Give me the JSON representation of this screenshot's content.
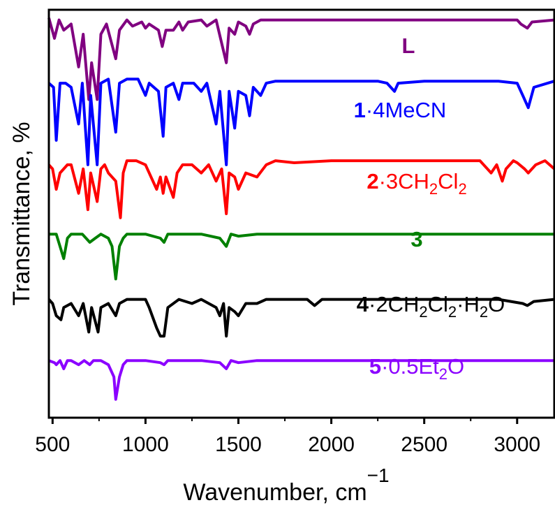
{
  "chart_data": {
    "type": "line",
    "xlabel": "Wavenumber, cm",
    "xlabel_superscript": "−1",
    "ylabel": "Transmittance, %",
    "xlim": [
      480,
      3200
    ],
    "xticks": [
      500,
      1000,
      1500,
      2000,
      2500,
      3000
    ],
    "yticks_shown": false,
    "grid": false,
    "legend": "inline labels beside each trace",
    "series": [
      {
        "name": "L",
        "color": "#800080",
        "label_parts": [
          {
            "t": "L",
            "bold": true
          }
        ],
        "baseline": 0.97,
        "depth_scale": 1.0,
        "points": [
          [
            480,
            0.98
          ],
          [
            510,
            0.93
          ],
          [
            535,
            0.975
          ],
          [
            560,
            0.95
          ],
          [
            600,
            0.965
          ],
          [
            640,
            0.86
          ],
          [
            665,
            0.94
          ],
          [
            695,
            0.78
          ],
          [
            710,
            0.87
          ],
          [
            740,
            0.78
          ],
          [
            760,
            0.94
          ],
          [
            790,
            0.965
          ],
          [
            840,
            0.88
          ],
          [
            860,
            0.95
          ],
          [
            900,
            0.975
          ],
          [
            930,
            0.96
          ],
          [
            980,
            0.97
          ],
          [
            1000,
            0.955
          ],
          [
            1020,
            0.965
          ],
          [
            1070,
            0.95
          ],
          [
            1090,
            0.91
          ],
          [
            1110,
            0.95
          ],
          [
            1150,
            0.95
          ],
          [
            1180,
            0.97
          ],
          [
            1200,
            0.95
          ],
          [
            1230,
            0.97
          ],
          [
            1300,
            0.975
          ],
          [
            1330,
            0.96
          ],
          [
            1380,
            0.975
          ],
          [
            1435,
            0.87
          ],
          [
            1450,
            0.955
          ],
          [
            1480,
            0.94
          ],
          [
            1500,
            0.97
          ],
          [
            1540,
            0.96
          ],
          [
            1560,
            0.94
          ],
          [
            1580,
            0.965
          ],
          [
            1620,
            0.975
          ],
          [
            1700,
            0.975
          ],
          [
            2000,
            0.975
          ],
          [
            2500,
            0.975
          ],
          [
            2900,
            0.975
          ],
          [
            3000,
            0.975
          ],
          [
            3020,
            0.965
          ],
          [
            3055,
            0.955
          ],
          [
            3080,
            0.97
          ],
          [
            3200,
            0.975
          ]
        ]
      },
      {
        "name": "1·4MeCN",
        "color": "#0000ff",
        "label_parts": [
          {
            "t": "1",
            "bold": true
          },
          {
            "t": "·4MeCN"
          }
        ],
        "points": [
          [
            480,
            0.82
          ],
          [
            505,
            0.81
          ],
          [
            520,
            0.68
          ],
          [
            540,
            0.82
          ],
          [
            570,
            0.82
          ],
          [
            600,
            0.81
          ],
          [
            640,
            0.72
          ],
          [
            660,
            0.82
          ],
          [
            690,
            0.62
          ],
          [
            705,
            0.79
          ],
          [
            740,
            0.62
          ],
          [
            760,
            0.82
          ],
          [
            800,
            0.83
          ],
          [
            840,
            0.7
          ],
          [
            860,
            0.82
          ],
          [
            900,
            0.83
          ],
          [
            960,
            0.83
          ],
          [
            1000,
            0.79
          ],
          [
            1020,
            0.82
          ],
          [
            1070,
            0.8
          ],
          [
            1095,
            0.69
          ],
          [
            1110,
            0.81
          ],
          [
            1150,
            0.82
          ],
          [
            1180,
            0.78
          ],
          [
            1200,
            0.82
          ],
          [
            1260,
            0.82
          ],
          [
            1300,
            0.8
          ],
          [
            1330,
            0.82
          ],
          [
            1380,
            0.72
          ],
          [
            1400,
            0.8
          ],
          [
            1435,
            0.62
          ],
          [
            1450,
            0.8
          ],
          [
            1480,
            0.71
          ],
          [
            1500,
            0.8
          ],
          [
            1540,
            0.79
          ],
          [
            1560,
            0.74
          ],
          [
            1580,
            0.81
          ],
          [
            1620,
            0.79
          ],
          [
            1650,
            0.82
          ],
          [
            1700,
            0.825
          ],
          [
            2000,
            0.825
          ],
          [
            2250,
            0.825
          ],
          [
            2300,
            0.82
          ],
          [
            2340,
            0.8
          ],
          [
            2360,
            0.82
          ],
          [
            2500,
            0.825
          ],
          [
            2900,
            0.825
          ],
          [
            3000,
            0.82
          ],
          [
            3030,
            0.79
          ],
          [
            3060,
            0.76
          ],
          [
            3090,
            0.81
          ],
          [
            3200,
            0.825
          ]
        ]
      },
      {
        "name": "2·3CH₂Cl₂",
        "color": "#ff0000",
        "label_parts": [
          {
            "t": "2",
            "bold": true
          },
          {
            "t": "·3CH"
          },
          {
            "t": "2",
            "sub": true
          },
          {
            "t": "Cl"
          },
          {
            "t": "2",
            "sub": true
          }
        ],
        "points": [
          [
            480,
            0.62
          ],
          [
            500,
            0.61
          ],
          [
            520,
            0.56
          ],
          [
            540,
            0.6
          ],
          [
            580,
            0.62
          ],
          [
            600,
            0.62
          ],
          [
            640,
            0.55
          ],
          [
            665,
            0.61
          ],
          [
            690,
            0.51
          ],
          [
            705,
            0.6
          ],
          [
            740,
            0.53
          ],
          [
            760,
            0.61
          ],
          [
            780,
            0.62
          ],
          [
            800,
            0.6
          ],
          [
            840,
            0.58
          ],
          [
            865,
            0.49
          ],
          [
            880,
            0.6
          ],
          [
            900,
            0.63
          ],
          [
            950,
            0.63
          ],
          [
            1000,
            0.62
          ],
          [
            1020,
            0.6
          ],
          [
            1060,
            0.56
          ],
          [
            1080,
            0.59
          ],
          [
            1095,
            0.55
          ],
          [
            1110,
            0.59
          ],
          [
            1150,
            0.54
          ],
          [
            1170,
            0.6
          ],
          [
            1200,
            0.62
          ],
          [
            1250,
            0.62
          ],
          [
            1300,
            0.6
          ],
          [
            1340,
            0.62
          ],
          [
            1380,
            0.58
          ],
          [
            1410,
            0.61
          ],
          [
            1435,
            0.5
          ],
          [
            1450,
            0.6
          ],
          [
            1480,
            0.59
          ],
          [
            1500,
            0.56
          ],
          [
            1540,
            0.6
          ],
          [
            1600,
            0.59
          ],
          [
            1650,
            0.62
          ],
          [
            1700,
            0.63
          ],
          [
            1800,
            0.625
          ],
          [
            2000,
            0.63
          ],
          [
            2500,
            0.63
          ],
          [
            2800,
            0.63
          ],
          [
            2840,
            0.61
          ],
          [
            2860,
            0.6
          ],
          [
            2890,
            0.62
          ],
          [
            2920,
            0.58
          ],
          [
            2940,
            0.61
          ],
          [
            2980,
            0.63
          ],
          [
            3000,
            0.625
          ],
          [
            3040,
            0.61
          ],
          [
            3060,
            0.6
          ],
          [
            3100,
            0.62
          ],
          [
            3150,
            0.63
          ],
          [
            3200,
            0.61
          ]
        ]
      },
      {
        "name": "3",
        "color": "#008000",
        "label_parts": [
          {
            "t": "3",
            "bold": true
          }
        ],
        "points": [
          [
            480,
            0.45
          ],
          [
            520,
            0.45
          ],
          [
            560,
            0.39
          ],
          [
            580,
            0.44
          ],
          [
            600,
            0.45
          ],
          [
            660,
            0.45
          ],
          [
            700,
            0.43
          ],
          [
            730,
            0.44
          ],
          [
            760,
            0.45
          ],
          [
            800,
            0.44
          ],
          [
            820,
            0.42
          ],
          [
            840,
            0.34
          ],
          [
            860,
            0.42
          ],
          [
            880,
            0.44
          ],
          [
            900,
            0.45
          ],
          [
            1000,
            0.45
          ],
          [
            1080,
            0.44
          ],
          [
            1100,
            0.43
          ],
          [
            1120,
            0.45
          ],
          [
            1300,
            0.45
          ],
          [
            1400,
            0.44
          ],
          [
            1435,
            0.42
          ],
          [
            1460,
            0.45
          ],
          [
            1500,
            0.445
          ],
          [
            1600,
            0.45
          ],
          [
            1800,
            0.45
          ],
          [
            2000,
            0.45
          ],
          [
            2500,
            0.45
          ],
          [
            2900,
            0.45
          ],
          [
            3000,
            0.45
          ],
          [
            3200,
            0.45
          ]
        ]
      },
      {
        "name": "4·2CH₂Cl₂·H₂O",
        "color": "#000000",
        "label_parts": [
          {
            "t": "4",
            "bold": true
          },
          {
            "t": "·2CH"
          },
          {
            "t": "2",
            "sub": true
          },
          {
            "t": "Cl"
          },
          {
            "t": "2",
            "sub": true
          },
          {
            "t": "·H"
          },
          {
            "t": "2",
            "sub": true
          },
          {
            "t": "O"
          }
        ],
        "points": [
          [
            480,
            0.29
          ],
          [
            500,
            0.28
          ],
          [
            520,
            0.25
          ],
          [
            545,
            0.24
          ],
          [
            560,
            0.27
          ],
          [
            600,
            0.28
          ],
          [
            640,
            0.25
          ],
          [
            665,
            0.28
          ],
          [
            695,
            0.21
          ],
          [
            710,
            0.27
          ],
          [
            745,
            0.21
          ],
          [
            760,
            0.27
          ],
          [
            800,
            0.28
          ],
          [
            840,
            0.25
          ],
          [
            860,
            0.28
          ],
          [
            900,
            0.29
          ],
          [
            1000,
            0.29
          ],
          [
            1020,
            0.27
          ],
          [
            1060,
            0.22
          ],
          [
            1080,
            0.2
          ],
          [
            1100,
            0.2
          ],
          [
            1120,
            0.27
          ],
          [
            1180,
            0.29
          ],
          [
            1250,
            0.28
          ],
          [
            1300,
            0.29
          ],
          [
            1380,
            0.27
          ],
          [
            1400,
            0.25
          ],
          [
            1420,
            0.28
          ],
          [
            1435,
            0.2
          ],
          [
            1450,
            0.27
          ],
          [
            1480,
            0.26
          ],
          [
            1500,
            0.25
          ],
          [
            1540,
            0.28
          ],
          [
            1600,
            0.28
          ],
          [
            1650,
            0.29
          ],
          [
            1700,
            0.29
          ],
          [
            1870,
            0.29
          ],
          [
            1910,
            0.275
          ],
          [
            1950,
            0.29
          ],
          [
            2000,
            0.29
          ],
          [
            2500,
            0.29
          ],
          [
            2900,
            0.29
          ],
          [
            3030,
            0.28
          ],
          [
            3055,
            0.275
          ],
          [
            3090,
            0.285
          ],
          [
            3200,
            0.29
          ]
        ]
      },
      {
        "name": "5·0.5Et₂O",
        "color": "#8b00ff",
        "label_parts": [
          {
            "t": "5",
            "bold": true
          },
          {
            "t": "·0.5Et"
          },
          {
            "t": "2",
            "sub": true
          },
          {
            "t": "O"
          }
        ],
        "points": [
          [
            480,
            0.14
          ],
          [
            510,
            0.135
          ],
          [
            520,
            0.13
          ],
          [
            540,
            0.14
          ],
          [
            560,
            0.12
          ],
          [
            580,
            0.14
          ],
          [
            600,
            0.14
          ],
          [
            640,
            0.13
          ],
          [
            670,
            0.14
          ],
          [
            700,
            0.13
          ],
          [
            720,
            0.14
          ],
          [
            760,
            0.14
          ],
          [
            800,
            0.13
          ],
          [
            830,
            0.1
          ],
          [
            840,
            0.045
          ],
          [
            860,
            0.1
          ],
          [
            880,
            0.13
          ],
          [
            900,
            0.14
          ],
          [
            1000,
            0.14
          ],
          [
            1080,
            0.135
          ],
          [
            1100,
            0.13
          ],
          [
            1120,
            0.14
          ],
          [
            1300,
            0.14
          ],
          [
            1400,
            0.135
          ],
          [
            1435,
            0.12
          ],
          [
            1460,
            0.14
          ],
          [
            1500,
            0.135
          ],
          [
            1600,
            0.14
          ],
          [
            1800,
            0.14
          ],
          [
            2000,
            0.14
          ],
          [
            2500,
            0.14
          ],
          [
            2900,
            0.14
          ],
          [
            3000,
            0.14
          ],
          [
            3200,
            0.14
          ]
        ]
      }
    ]
  }
}
